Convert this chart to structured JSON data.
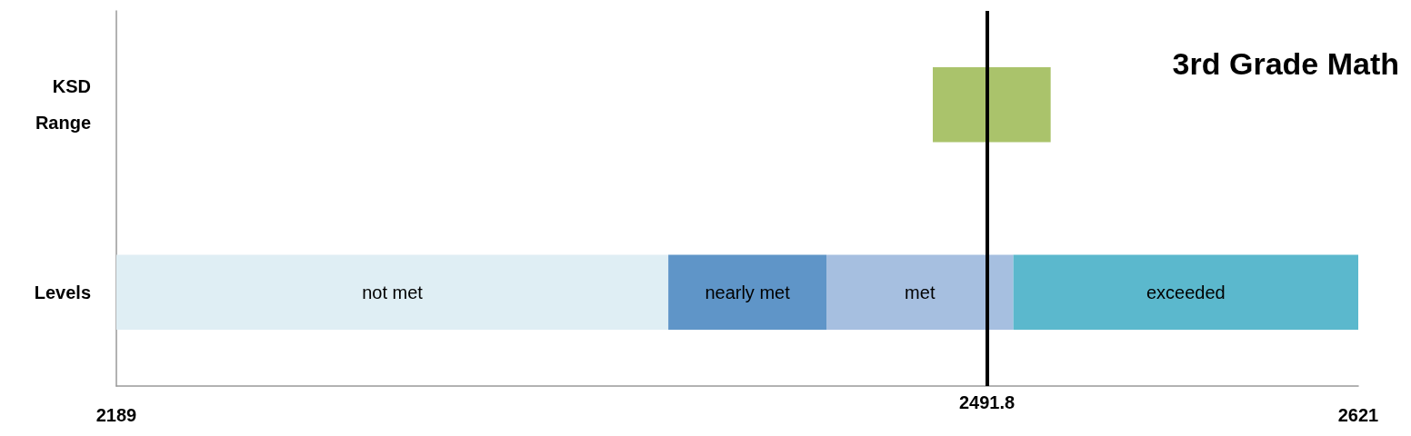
{
  "chart_data": {
    "type": "bar",
    "orientation": "horizontal",
    "title": "3rd Grade Math",
    "categories": [
      "KSD Range",
      "Levels"
    ],
    "series": [
      {
        "name": "not met",
        "color": "#dfeef4",
        "values": [
          null,
          192
        ],
        "base": [
          null,
          2189
        ]
      },
      {
        "name": "nearly met",
        "color": "#5f95c8",
        "values": [
          null,
          55
        ],
        "base": [
          null,
          2381
        ]
      },
      {
        "name": "met",
        "color": "#a6bfe0",
        "values": [
          null,
          65
        ],
        "base": [
          null,
          2436
        ]
      },
      {
        "name": "exceeded",
        "color": "#5bb8cd",
        "values": [
          null,
          120
        ],
        "base": [
          null,
          2501
        ]
      },
      {
        "color": "#aac36b",
        "values": [
          41,
          null
        ],
        "base": [
          2473,
          null
        ]
      }
    ],
    "xlim": [
      2189,
      2621
    ],
    "xticks": [
      2189,
      2621
    ],
    "ref_lines": [
      {
        "axis": "x",
        "value": 2491.8,
        "label": "2491.8",
        "color": "#000000"
      }
    ],
    "grid": false,
    "legend": false
  }
}
